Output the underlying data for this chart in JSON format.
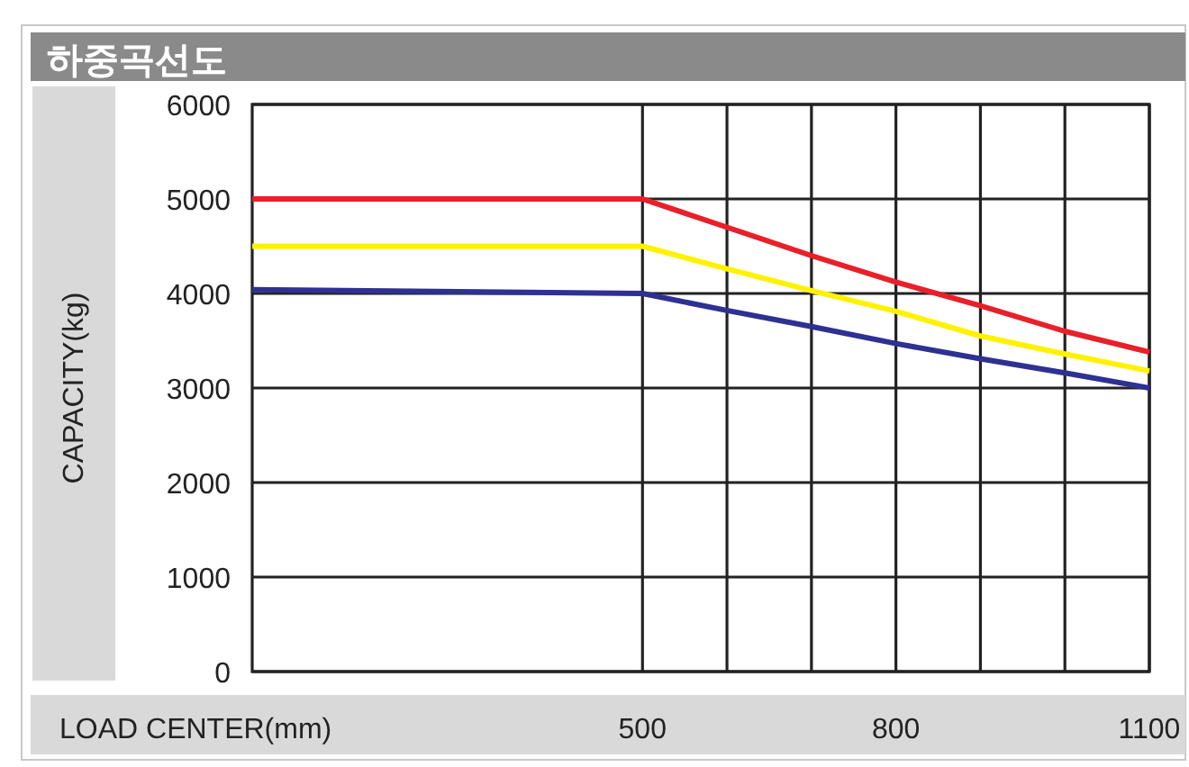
{
  "chart_data": {
    "type": "line",
    "title": "하중곡선도",
    "xlabel": "LOAD CENTER(mm)",
    "ylabel": "CAPACITY(kg)",
    "x": [
      38,
      500,
      600,
      700,
      800,
      900,
      1000,
      1100
    ],
    "series": [
      {
        "color": "#e8202a",
        "values": [
          5000,
          5000,
          4700,
          4400,
          4120,
          3870,
          3600,
          3380
        ]
      },
      {
        "color": "#fff200",
        "values": [
          4500,
          4500,
          4260,
          4030,
          3810,
          3550,
          3360,
          3180
        ]
      },
      {
        "color": "#2e3192",
        "values": [
          4040,
          4000,
          3820,
          3650,
          3470,
          3310,
          3160,
          3000
        ]
      }
    ],
    "xlim": [
      38,
      1100
    ],
    "ylim": [
      0,
      6000
    ],
    "xticks": [
      500,
      {
        "value": 600,
        "label": null
      },
      {
        "value": 700,
        "label": null
      },
      800,
      {
        "value": 900,
        "label": null
      },
      {
        "value": 1000,
        "label": null
      },
      1100
    ],
    "yticks": [
      0,
      1000,
      2000,
      3000,
      4000,
      5000,
      6000
    ],
    "grid": true,
    "marker": "none",
    "line_style": "solid"
  }
}
